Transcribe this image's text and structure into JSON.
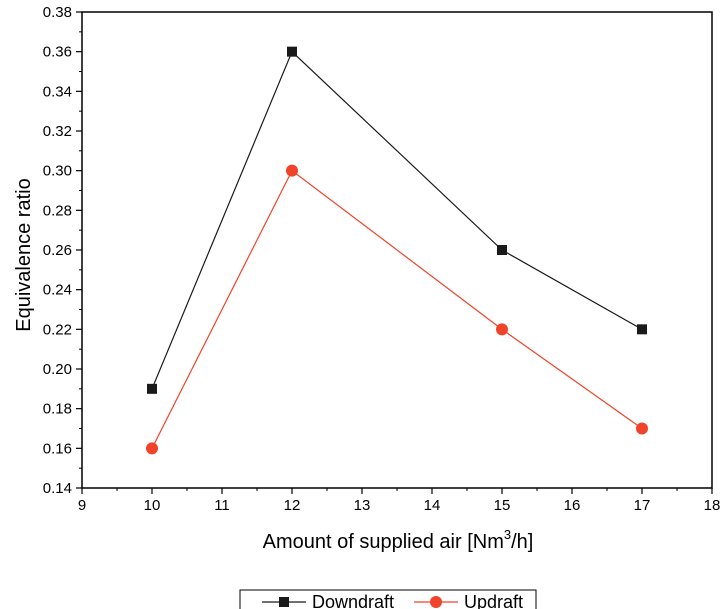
{
  "chart_data": {
    "type": "line",
    "title": "",
    "xlabel_main": "Amount of supplied air [Nm",
    "xlabel_sup": "3",
    "xlabel_end": "/h]",
    "ylabel": "Equivalence ratio",
    "xlim": [
      9,
      18
    ],
    "ylim": [
      0.14,
      0.38
    ],
    "x_ticks": [
      "9",
      "10",
      "11",
      "12",
      "13",
      "14",
      "15",
      "16",
      "17",
      "18"
    ],
    "y_ticks": [
      "0.14",
      "0.16",
      "0.18",
      "0.20",
      "0.22",
      "0.24",
      "0.26",
      "0.28",
      "0.30",
      "0.32",
      "0.34",
      "0.36",
      "0.38"
    ],
    "grid": false,
    "legend_position": "bottom",
    "x": [
      10,
      12,
      15,
      17
    ],
    "series": [
      {
        "name": "Downdraft",
        "values": [
          0.19,
          0.36,
          0.26,
          0.22
        ],
        "color": "#1a1a1a",
        "marker": "square"
      },
      {
        "name": "Updraft",
        "values": [
          0.16,
          0.3,
          0.22,
          0.17
        ],
        "color": "#f0432a",
        "marker": "circle"
      }
    ]
  }
}
